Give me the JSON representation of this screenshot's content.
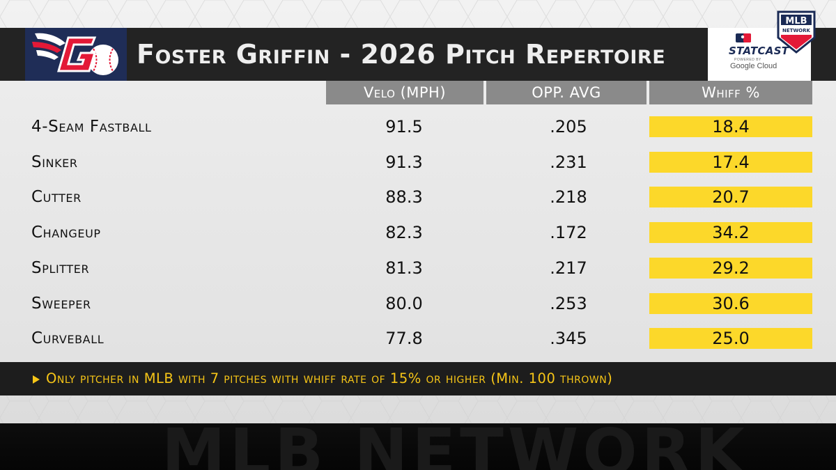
{
  "title": "Foster Griffin - 2026 Pitch Repertoire",
  "headers": {
    "velo": "Velo (MPH)",
    "opp_avg": "OPP. AVG",
    "whiff": "Whiff %"
  },
  "rows": [
    {
      "pitch": "4-Seam Fastball",
      "velo": "91.5",
      "opp_avg": ".205",
      "whiff": "18.4"
    },
    {
      "pitch": "Sinker",
      "velo": "91.3",
      "opp_avg": ".231",
      "whiff": "17.4"
    },
    {
      "pitch": "Cutter",
      "velo": "88.3",
      "opp_avg": ".218",
      "whiff": "20.7"
    },
    {
      "pitch": "Changeup",
      "velo": "82.3",
      "opp_avg": ".172",
      "whiff": "34.2"
    },
    {
      "pitch": "Splitter",
      "velo": "81.3",
      "opp_avg": ".217",
      "whiff": "29.2"
    },
    {
      "pitch": "Sweeper",
      "velo": "80.0",
      "opp_avg": ".253",
      "whiff": "30.6"
    },
    {
      "pitch": "Curveball",
      "velo": "77.8",
      "opp_avg": ".345",
      "whiff": "25.0"
    }
  ],
  "note": "Only pitcher in MLB with 7 pitches with whiff rate of 15% or higher (Min. 100 thrown)",
  "branding": {
    "statcast": "STATCAST",
    "powered_by": "POWERED BY",
    "google_cloud": "Google Cloud",
    "mlb_network_badge_top": "MLB",
    "mlb_network_badge_bottom": "NETWORK",
    "watermark": "MLB NETWORK",
    "team_logo_icon": "guardians-g-logo-icon"
  },
  "colors": {
    "highlight": "#fcd82a",
    "note_text": "#f6c517",
    "header_gray": "#8a8a8a",
    "title_bar": "#232323",
    "team_navy": "#1f2d57",
    "team_red": "#e31937"
  }
}
